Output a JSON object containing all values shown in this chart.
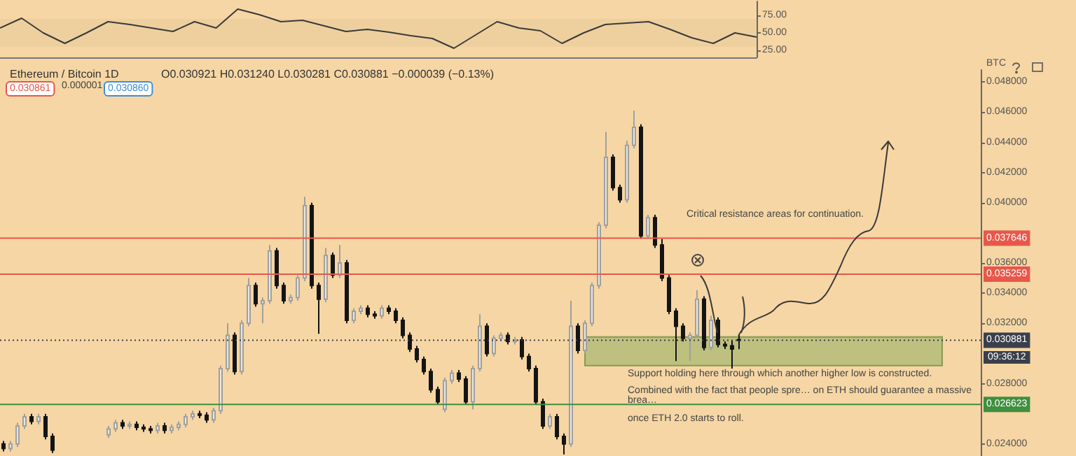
{
  "chart_data": [
    {
      "type": "line",
      "categories": [
        null,
        null,
        null,
        null,
        null,
        null,
        null,
        null,
        null,
        null,
        null,
        null,
        null,
        null,
        null,
        null,
        null,
        null,
        null,
        null,
        null,
        null,
        null,
        null,
        null,
        null,
        null,
        null,
        null,
        null,
        null,
        null,
        null,
        null,
        null,
        null
      ],
      "series": [
        {
          "color": "#3a3a3a",
          "values": [
            57,
            71,
            50,
            35,
            50,
            66,
            62,
            57,
            52,
            66,
            57,
            84,
            76,
            66,
            68,
            60,
            52,
            55,
            51,
            46,
            42,
            28,
            47,
            66,
            57,
            53,
            35,
            50,
            62,
            64,
            66,
            55,
            43,
            35,
            50,
            44
          ]
        }
      ],
      "ylim": [
        15,
        95
      ],
      "yticks": [
        {
          "value": 25,
          "label": "25.00"
        },
        {
          "value": 50,
          "label": "50.00"
        },
        {
          "value": 75,
          "label": "75.00"
        }
      ],
      "bands": [
        {
          "axis": "y",
          "from": 30,
          "to": 70,
          "color": "#ebcd9c"
        }
      ],
      "tick_labels": "y",
      "marker": "none"
    },
    {
      "type": "candlestick",
      "title": "Ethereum / Bitcoin 1D",
      "subtitle": "O0.030921 H0.031240 L0.030281 C0.030881 −0.000039 (−0.13%)",
      "ylabel": "BTC",
      "categories": [
        null,
        null,
        null,
        null,
        null,
        null,
        null,
        null,
        null,
        null,
        null,
        null,
        null,
        null,
        null,
        null,
        null,
        null,
        null,
        null,
        null,
        null,
        null,
        null,
        null,
        null,
        null,
        null,
        null,
        null,
        null,
        null,
        null,
        null,
        null,
        null,
        null,
        null,
        null,
        null,
        null,
        null,
        null,
        null,
        null,
        null,
        null,
        null,
        null,
        null,
        null,
        null,
        null,
        null,
        null,
        null,
        null,
        null,
        null,
        null,
        null,
        null,
        null,
        null,
        null,
        null,
        null,
        null,
        null,
        null,
        null,
        null,
        null,
        null,
        null,
        null,
        null,
        null,
        null,
        null,
        null,
        null,
        null,
        null,
        null,
        null,
        null,
        null,
        null,
        null,
        null,
        null,
        null,
        null,
        null,
        null,
        null,
        null,
        null,
        null,
        null,
        null,
        null,
        null,
        null,
        null,
        null,
        null,
        null,
        null,
        null,
        null,
        null,
        null,
        null,
        null,
        null,
        null,
        null,
        null,
        null,
        null,
        null,
        null,
        null,
        null,
        null,
        null,
        null,
        null,
        null,
        null,
        null,
        null,
        null,
        null,
        null,
        null,
        null,
        null
      ],
      "ohlc": [
        [
          0.024,
          0.0242,
          0.0235,
          0.0237
        ],
        [
          0.0237,
          0.0242,
          0.0235,
          0.024
        ],
        [
          0.024,
          0.0254,
          0.0238,
          0.0252
        ],
        [
          0.0252,
          0.026,
          0.025,
          0.0258
        ],
        [
          0.0258,
          0.026,
          0.0253,
          0.0255
        ],
        [
          0.0255,
          0.026,
          0.0253,
          0.0258
        ],
        [
          0.0258,
          0.026,
          0.0243,
          0.0245
        ],
        [
          0.0245,
          0.0247,
          0.0234,
          0.0236
        ],
        null,
        null,
        null,
        null,
        null,
        null,
        null,
        [
          0.0246,
          0.0252,
          0.0244,
          0.025
        ],
        [
          0.025,
          0.0256,
          0.0248,
          0.0254
        ],
        [
          0.0254,
          0.0256,
          0.025,
          0.0252
        ],
        [
          0.0252,
          0.0255,
          0.025,
          0.0253
        ],
        [
          0.0253,
          0.0255,
          0.0249,
          0.0251
        ],
        [
          0.0251,
          0.0253,
          0.0248,
          0.025
        ],
        [
          0.025,
          0.0252,
          0.0247,
          0.0249
        ],
        [
          0.0249,
          0.0254,
          0.0247,
          0.0252
        ],
        [
          0.0252,
          0.0254,
          0.0247,
          0.0249
        ],
        [
          0.0249,
          0.0253,
          0.0247,
          0.0251
        ],
        [
          0.0251,
          0.0255,
          0.0249,
          0.0253
        ],
        [
          0.0253,
          0.026,
          0.0251,
          0.0258
        ],
        [
          0.0258,
          0.0262,
          0.0256,
          0.026
        ],
        [
          0.026,
          0.0262,
          0.0257,
          0.0259
        ],
        [
          0.0259,
          0.0261,
          0.0254,
          0.0256
        ],
        [
          0.0256,
          0.0264,
          0.0254,
          0.0262
        ],
        [
          0.0262,
          0.0292,
          0.026,
          0.029
        ],
        [
          0.029,
          0.032,
          0.0288,
          0.0312
        ],
        [
          0.0312,
          0.0314,
          0.0286,
          0.0288
        ],
        [
          0.0288,
          0.0322,
          0.0286,
          0.032
        ],
        [
          0.032,
          0.035,
          0.0318,
          0.0345
        ],
        [
          0.0345,
          0.0347,
          0.0331,
          0.0333
        ],
        [
          0.0333,
          0.0337,
          0.032,
          0.0335
        ],
        [
          0.0335,
          0.0372,
          0.0333,
          0.0368
        ],
        [
          0.0368,
          0.037,
          0.0343,
          0.0345
        ],
        [
          0.0345,
          0.0347,
          0.0333,
          0.0335
        ],
        [
          0.0335,
          0.0339,
          0.0333,
          0.0337
        ],
        [
          0.0337,
          0.0352,
          0.0335,
          0.035
        ],
        [
          0.035,
          0.0404,
          0.0348,
          0.0398
        ],
        [
          0.0398,
          0.04,
          0.0343,
          0.0345
        ],
        [
          0.0345,
          0.0347,
          0.0313,
          0.0336
        ],
        [
          0.0336,
          0.037,
          0.0334,
          0.0365
        ],
        [
          0.0365,
          0.0367,
          0.035,
          0.0352
        ],
        [
          0.0352,
          0.0372,
          0.035,
          0.036
        ],
        [
          0.036,
          0.0362,
          0.032,
          0.0322
        ],
        [
          0.0322,
          0.033,
          0.032,
          0.0328
        ],
        [
          0.0328,
          0.0332,
          0.0326,
          0.033
        ],
        [
          0.033,
          0.0332,
          0.0324,
          0.0326
        ],
        [
          0.0326,
          0.0328,
          0.0323,
          0.0325
        ],
        [
          0.0325,
          0.0332,
          0.0323,
          0.033
        ],
        [
          0.033,
          0.0332,
          0.0326,
          0.0328
        ],
        [
          0.0328,
          0.033,
          0.032,
          0.0322
        ],
        [
          0.0322,
          0.0324,
          0.031,
          0.0312
        ],
        [
          0.0312,
          0.0314,
          0.0301,
          0.0303
        ],
        [
          0.0303,
          0.0305,
          0.0294,
          0.0296
        ],
        [
          0.0296,
          0.0298,
          0.0286,
          0.0288
        ],
        [
          0.0288,
          0.029,
          0.0274,
          0.0276
        ],
        [
          0.0276,
          0.0278,
          0.0266,
          0.0268
        ],
        [
          0.0263,
          0.0284,
          0.0261,
          0.0282
        ],
        [
          0.0282,
          0.0289,
          0.028,
          0.0287
        ],
        [
          0.0287,
          0.0289,
          0.0281,
          0.0283
        ],
        [
          0.0283,
          0.0285,
          0.0266,
          0.0268
        ],
        [
          0.0268,
          0.0292,
          0.0263,
          0.029
        ],
        [
          0.029,
          0.0326,
          0.0288,
          0.0318
        ],
        [
          0.0318,
          0.032,
          0.0298,
          0.03
        ],
        [
          0.03,
          0.0312,
          0.0298,
          0.031
        ],
        [
          0.031,
          0.0314,
          0.0308,
          0.0312
        ],
        [
          0.0312,
          0.0314,
          0.0306,
          0.0308
        ],
        [
          0.0308,
          0.0311,
          0.0306,
          0.0309
        ],
        [
          0.0309,
          0.0311,
          0.0296,
          0.0298
        ],
        [
          0.0298,
          0.03,
          0.0288,
          0.029
        ],
        [
          0.029,
          0.0292,
          0.0266,
          0.0268
        ],
        [
          0.0268,
          0.027,
          0.025,
          0.0252
        ],
        [
          0.0252,
          0.026,
          0.025,
          0.0258
        ],
        [
          0.0258,
          0.026,
          0.0243,
          0.0245
        ],
        [
          0.0245,
          0.0247,
          0.0233,
          0.024
        ],
        [
          0.024,
          0.0335,
          0.0238,
          0.0318
        ],
        [
          0.0318,
          0.032,
          0.03,
          0.0302
        ],
        [
          0.0302,
          0.0322,
          0.03,
          0.032
        ],
        [
          0.032,
          0.0347,
          0.0318,
          0.0345
        ],
        [
          0.0345,
          0.0387,
          0.0343,
          0.0385
        ],
        [
          0.0385,
          0.0447,
          0.0383,
          0.043
        ],
        [
          0.043,
          0.0432,
          0.0408,
          0.041
        ],
        [
          0.041,
          0.0412,
          0.04,
          0.0402
        ],
        [
          0.0402,
          0.0441,
          0.04,
          0.0438
        ],
        [
          0.0438,
          0.0461,
          0.0436,
          0.045
        ],
        [
          0.045,
          0.0452,
          0.0376,
          0.0378
        ],
        [
          0.0378,
          0.0392,
          0.0376,
          0.039
        ],
        [
          0.039,
          0.0392,
          0.037,
          0.0372
        ],
        [
          0.0372,
          0.0376,
          0.0348,
          0.035
        ],
        [
          0.035,
          0.0352,
          0.0326,
          0.0328
        ],
        [
          0.0328,
          0.033,
          0.0295,
          0.0318
        ],
        [
          0.0318,
          0.032,
          0.0308,
          0.031
        ],
        [
          0.031,
          0.0314,
          0.0295,
          0.0312
        ],
        [
          0.0312,
          0.0342,
          0.031,
          0.0336
        ],
        [
          0.0336,
          0.0338,
          0.0302,
          0.0304
        ],
        [
          0.0304,
          0.0325,
          0.0302,
          0.0322
        ],
        [
          0.0322,
          0.0324,
          0.0304,
          0.0306
        ],
        [
          0.0306,
          0.0308,
          0.0303,
          0.0305
        ],
        [
          0.0305,
          0.0309,
          0.029,
          0.0303
        ],
        [
          0.030921,
          0.03124,
          0.030281,
          0.030881
        ],
        null,
        null,
        null,
        null,
        null,
        null,
        null,
        null,
        null,
        null,
        null,
        null,
        null,
        null,
        null,
        null,
        null,
        null,
        null,
        null,
        null,
        null,
        null,
        null,
        null,
        null,
        null,
        null,
        null,
        null,
        null,
        null,
        null,
        null
      ],
      "ylim": [
        0.0232,
        0.0488
      ],
      "yticks": [
        {
          "value": 0.024,
          "label": "0.024000"
        },
        {
          "value": 0.028,
          "label": "0.028000"
        },
        {
          "value": 0.032,
          "label": "0.032000"
        },
        {
          "value": 0.034,
          "label": "0.034000"
        },
        {
          "value": 0.036,
          "label": "0.036000"
        },
        {
          "value": 0.04,
          "label": "0.040000"
        },
        {
          "value": 0.042,
          "label": "0.042000"
        },
        {
          "value": 0.044,
          "label": "0.044000"
        },
        {
          "value": 0.046,
          "label": "0.046000"
        },
        {
          "value": 0.048,
          "label": "0.048000"
        }
      ],
      "tick_labels": "y",
      "ref_lines": [
        {
          "axis": "y",
          "value": 0.037646,
          "label": "0.037646",
          "color": "#e8574a",
          "line_style": "solid"
        },
        {
          "axis": "y",
          "value": 0.035259,
          "label": "0.035259",
          "color": "#e8574a",
          "line_style": "solid"
        },
        {
          "axis": "y",
          "value": 0.030881,
          "label": "0.030881",
          "color": "#3a3f4b",
          "line_style": "dotted"
        },
        {
          "axis": "y",
          "value": 0.026623,
          "label": "0.026623",
          "color": "#3f8f3f",
          "line_style": "solid"
        }
      ],
      "bands": [
        {
          "axis": "y",
          "from": 0.0292,
          "to": 0.0311,
          "color": "#a9b873"
        }
      ],
      "annotations": [
        "Critical resistance areas for continuation.",
        "Support holding here through which another higher low is constructed.",
        "Combined with the fact that people spre… on ETH should guarantee a massive brea…",
        "once ETH 2.0 starts to roll.",
        "0.030861",
        "0.000001",
        "0.030860",
        "09:36:12"
      ]
    }
  ]
}
